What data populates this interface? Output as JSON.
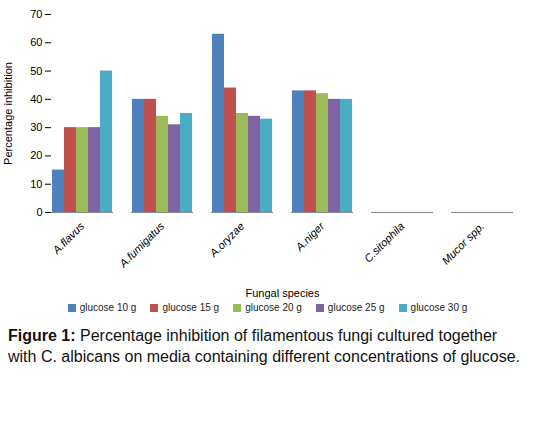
{
  "chart_data": {
    "type": "bar",
    "caption": "Figure 1: Percentage inhibition of filamentous fungi cultured together with C. albicans on media containing different concentrations of glucose.",
    "x_label": "Fungal species",
    "y_label": "Percentage inhibition",
    "categories": [
      "A.flavus",
      "A.fumigatus",
      "A.oryzae",
      "A.niger",
      "C.sitophila",
      "Mucor spp."
    ],
    "series": [
      {
        "name": "glucose 10 g",
        "color": "#4f81bd",
        "values": [
          15,
          40,
          63,
          43,
          0,
          0
        ]
      },
      {
        "name": "glucose 15 g",
        "color": "#c0504d",
        "values": [
          30,
          40,
          44,
          43,
          0,
          0
        ]
      },
      {
        "name": "glucose 20 g",
        "color": "#9bbb59",
        "values": [
          30,
          34,
          35,
          42,
          0,
          0
        ]
      },
      {
        "name": "glucose 25 g",
        "color": "#8064a2",
        "values": [
          30,
          31,
          34,
          40,
          0,
          0
        ]
      },
      {
        "name": "glucose 30 g",
        "color": "#4bacc6",
        "values": [
          50,
          35,
          33,
          40,
          0,
          0
        ]
      }
    ],
    "ylim": [
      0,
      70
    ],
    "yticks": [
      0,
      10,
      20,
      30,
      40,
      50,
      60,
      70
    ],
    "grid": false,
    "legend": "bottom"
  }
}
